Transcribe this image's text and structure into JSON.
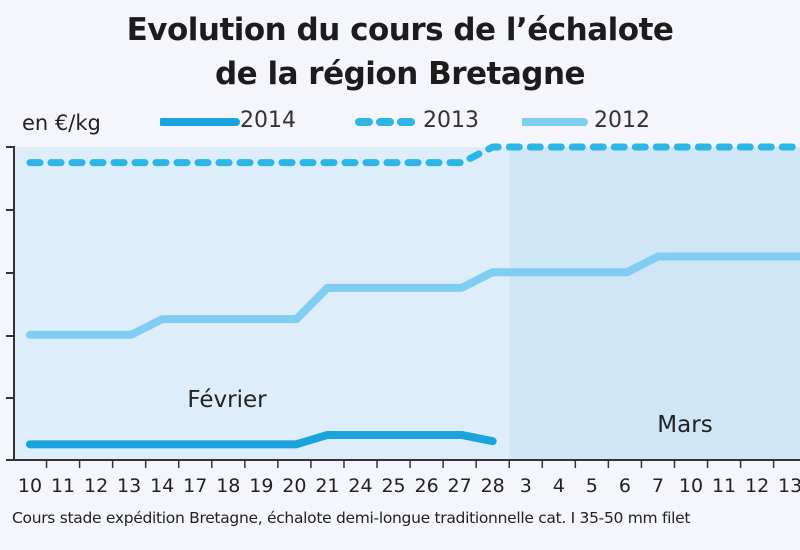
{
  "header": {
    "title_line1": "Evolution du cours de l’échalote",
    "title_line2": "de la région Bretagne"
  },
  "unit_label": "en €/kg",
  "footnote": "Cours stade expédition Bretagne, échalote demi-longue traditionnelle cat. I 35-50 mm filet",
  "colors": {
    "background": "#f4f6fb",
    "plot_bg": "#ddeefa",
    "plot_bg_march": "#cfe6f7",
    "series_2014": "#1aa3dc",
    "series_2013": "#2cb6e6",
    "series_2012": "#7fcdf0"
  },
  "chart_data": {
    "type": "line",
    "title": "Evolution du cours de l’échalote de la région Bretagne",
    "ylabel": "en €/kg",
    "month_labels": [
      "Février",
      "Mars"
    ],
    "categories": [
      "10",
      "11",
      "12",
      "13",
      "14",
      "17",
      "18",
      "19",
      "20",
      "21",
      "24",
      "25",
      "26",
      "27",
      "28",
      "3",
      "4",
      "5",
      "6",
      "7",
      "10",
      "11",
      "12",
      "13"
    ],
    "series": [
      {
        "name": "2014",
        "style": "solid-thick",
        "values": [
          0.75,
          0.75,
          0.75,
          0.75,
          0.75,
          0.75,
          0.75,
          0.75,
          0.75,
          0.9,
          0.9,
          0.9,
          0.9,
          0.9,
          0.8,
          null,
          null,
          null,
          null,
          null,
          null,
          null,
          null,
          null
        ]
      },
      {
        "name": "2013",
        "style": "dashed",
        "values": [
          5.25,
          5.25,
          5.25,
          5.25,
          5.25,
          5.25,
          5.25,
          5.25,
          5.25,
          5.25,
          5.25,
          5.25,
          5.25,
          5.25,
          5.5,
          5.5,
          5.5,
          5.5,
          5.5,
          5.5,
          5.5,
          5.5,
          5.5,
          5.5
        ]
      },
      {
        "name": "2012",
        "style": "solid-light",
        "values": [
          2.5,
          2.5,
          2.5,
          2.5,
          2.75,
          2.75,
          2.75,
          2.75,
          2.75,
          3.25,
          3.25,
          3.25,
          3.25,
          3.25,
          3.5,
          3.5,
          3.5,
          3.5,
          3.5,
          3.75,
          3.75,
          3.75,
          3.75,
          3.75
        ]
      }
    ],
    "ylim": [
      0.5,
      5.5
    ],
    "grid": false,
    "legend_position": "top"
  }
}
